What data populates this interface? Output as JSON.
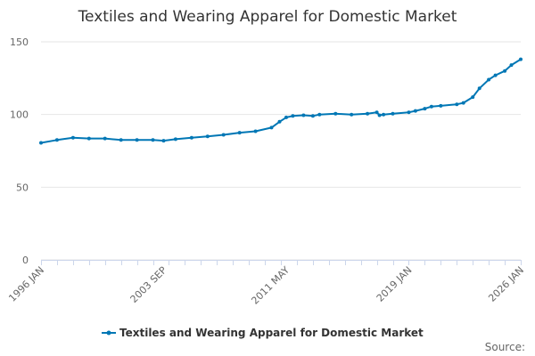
{
  "chart_data": {
    "type": "line",
    "title": "Textiles and Wearing Apparel for Domestic Market",
    "xlabel": "",
    "ylabel": "",
    "ylim": [
      0,
      150
    ],
    "yticks": [
      0,
      50,
      100,
      150
    ],
    "xlim": [
      "1996-01",
      "2026-01"
    ],
    "xtick_labels": [
      "1996 JAN",
      "2003 SEP",
      "2011 MAY",
      "2019 JAN",
      "2026 JAN"
    ],
    "grid": true,
    "legend_position": "bottom-center",
    "series": [
      {
        "name": "Textiles and Wearing Apparel for Domestic Market",
        "color": "#0077b5",
        "x": [
          "1996-01",
          "1997-01",
          "1998-01",
          "1999-01",
          "2000-01",
          "2001-01",
          "2002-01",
          "2003-01",
          "2003-09",
          "2004-06",
          "2005-06",
          "2006-06",
          "2007-06",
          "2008-06",
          "2009-06",
          "2010-06",
          "2010-12",
          "2011-05",
          "2011-10",
          "2012-06",
          "2013-01",
          "2013-06",
          "2014-06",
          "2015-06",
          "2016-06",
          "2017-01",
          "2017-03",
          "2017-06",
          "2018-01",
          "2019-01",
          "2019-06",
          "2020-01",
          "2020-06",
          "2021-01",
          "2022-01",
          "2022-06",
          "2023-01",
          "2023-06",
          "2024-01",
          "2024-06",
          "2025-01",
          "2025-06",
          "2026-01"
        ],
        "values": [
          80.5,
          82.5,
          84.0,
          83.5,
          83.5,
          82.5,
          82.5,
          82.5,
          82.0,
          83.0,
          84.0,
          85.0,
          86.0,
          87.5,
          88.5,
          91.0,
          95.0,
          98.0,
          99.0,
          99.5,
          99.0,
          100.0,
          100.5,
          100.0,
          100.5,
          101.5,
          99.5,
          100.0,
          100.5,
          101.5,
          102.5,
          104.0,
          105.5,
          106.0,
          107.0,
          108.0,
          112.0,
          118.0,
          124.0,
          127.0,
          130.0,
          134.0,
          138.0
        ]
      }
    ]
  },
  "source_label": "Source:"
}
